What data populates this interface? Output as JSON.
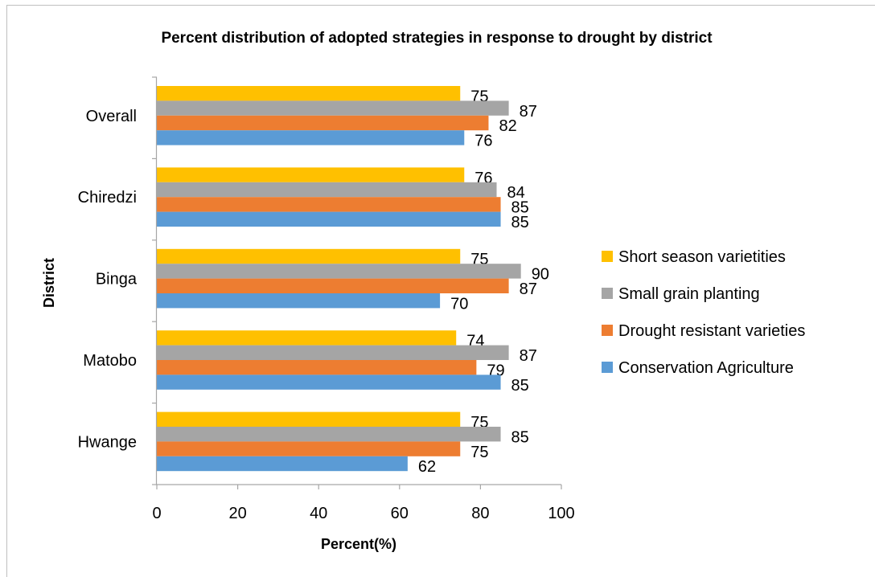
{
  "chart_data": {
    "type": "bar",
    "orientation": "horizontal",
    "title": "Percent distribution of adopted strategies in response to drought by district",
    "xlabel": "Percent(%)",
    "ylabel": "District",
    "xlim": [
      0,
      100
    ],
    "xticks": [
      "0",
      "20",
      "40",
      "60",
      "80",
      "100"
    ],
    "categories": [
      "Overall",
      "Chiredzi",
      "Binga",
      "Matobo",
      "Hwange"
    ],
    "series": [
      {
        "name": "Short season varietities",
        "color": "#FFC000",
        "values": [
          75,
          76,
          75,
          74,
          75
        ]
      },
      {
        "name": "Small grain planting",
        "color": "#A5A5A5",
        "values": [
          87,
          84,
          90,
          87,
          85
        ]
      },
      {
        "name": "Drought resistant varieties",
        "color": "#ED7D31",
        "values": [
          82,
          85,
          87,
          79,
          75
        ]
      },
      {
        "name": "Conservation Agriculture",
        "color": "#5B9BD5",
        "values": [
          76,
          85,
          70,
          85,
          62
        ]
      }
    ],
    "grid": false,
    "legend_position": "right",
    "data_labels": true
  }
}
